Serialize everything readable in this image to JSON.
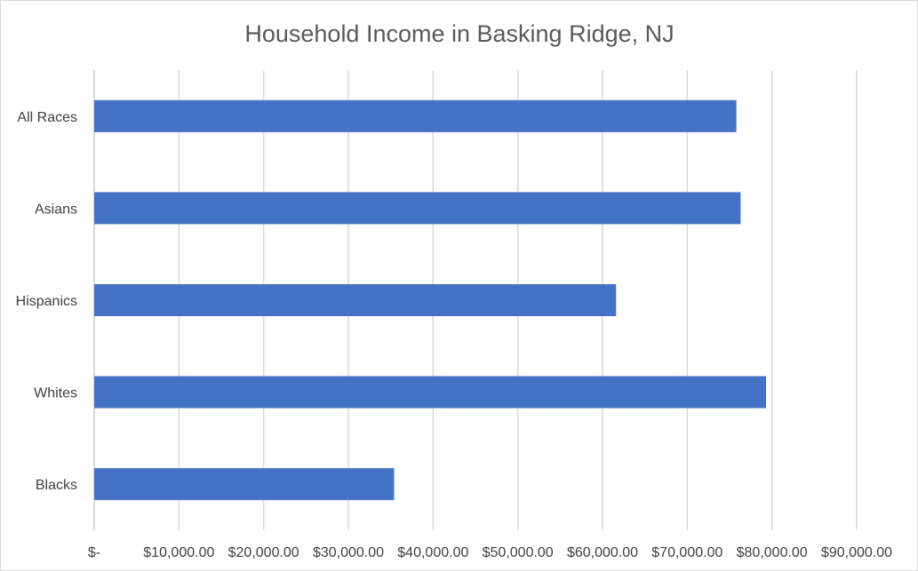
{
  "chart_data": {
    "type": "bar",
    "orientation": "horizontal",
    "title": "Household Income in Basking Ridge, NJ",
    "xlabel": "",
    "ylabel": "",
    "categories": [
      "All Races",
      "Asians",
      "Hispanics",
      "Whites",
      "Blacks"
    ],
    "values": [
      75800,
      76300,
      61600,
      79300,
      35400
    ],
    "xlim": [
      0,
      90000
    ],
    "x_ticks": [
      0,
      10000,
      20000,
      30000,
      40000,
      50000,
      60000,
      70000,
      80000,
      90000
    ],
    "x_tick_labels": [
      "$-",
      "$10,000.00",
      "$20,000.00",
      "$30,000.00",
      "$40,000.00",
      "$50,000.00",
      "$60,000.00",
      "$70,000.00",
      "$80,000.00",
      "$90,000.00"
    ],
    "grid": true,
    "legend": "none",
    "colors": {
      "bar": "#4472c4",
      "grid": "#d9d9d9",
      "text": "#404040",
      "title": "#595959"
    }
  }
}
